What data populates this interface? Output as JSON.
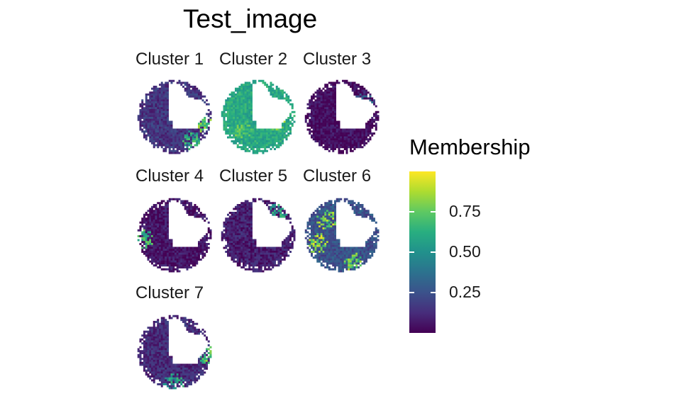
{
  "chart_data": {
    "type": "heatmap",
    "title": "Test_image",
    "panels": [
      {
        "label": "Cluster 1",
        "level": 0.15,
        "hot_regions": [
          {
            "a": 0.2,
            "r": 0.85,
            "v": 0.9
          },
          {
            "a": 0.95,
            "r": 0.8,
            "v": 0.75
          }
        ]
      },
      {
        "label": "Cluster 2",
        "level": 0.6,
        "hot_regions": [
          {
            "a": 0.2,
            "r": 0.5,
            "v": 0.95
          },
          {
            "a": -0.6,
            "r": 0.4,
            "v": 0.9
          },
          {
            "a": 2.5,
            "r": 0.55,
            "v": 0.85
          }
        ]
      },
      {
        "label": "Cluster 3",
        "level": 0.03,
        "hot_regions": [
          {
            "a": 5.7,
            "r": 0.75,
            "v": 0.4
          }
        ]
      },
      {
        "label": "Cluster 4",
        "level": 0.05,
        "hot_regions": [
          {
            "a": 3.0,
            "r": 0.85,
            "v": 0.8
          }
        ]
      },
      {
        "label": "Cluster 5",
        "level": 0.08,
        "hot_regions": [
          {
            "a": 5.4,
            "r": 0.8,
            "v": 0.7
          }
        ]
      },
      {
        "label": "Cluster 6",
        "level": 0.25,
        "hot_regions": [
          {
            "a": 2.8,
            "r": 0.7,
            "v": 0.98
          },
          {
            "a": 3.9,
            "r": 0.6,
            "v": 0.95
          },
          {
            "a": 1.2,
            "r": 0.8,
            "v": 0.9
          }
        ]
      },
      {
        "label": "Cluster 7",
        "level": 0.12,
        "hot_regions": [
          {
            "a": 0.1,
            "r": 0.95,
            "v": 0.85
          },
          {
            "a": 1.6,
            "r": 0.85,
            "v": 0.7
          }
        ]
      }
    ],
    "legend": {
      "title": "Membership",
      "ticks": [
        0.75,
        0.5,
        0.25
      ],
      "tick_labels": [
        "0.75",
        "0.50",
        "0.25"
      ],
      "range": [
        0.0,
        1.0
      ],
      "colormap": "viridis",
      "position": "right"
    }
  }
}
